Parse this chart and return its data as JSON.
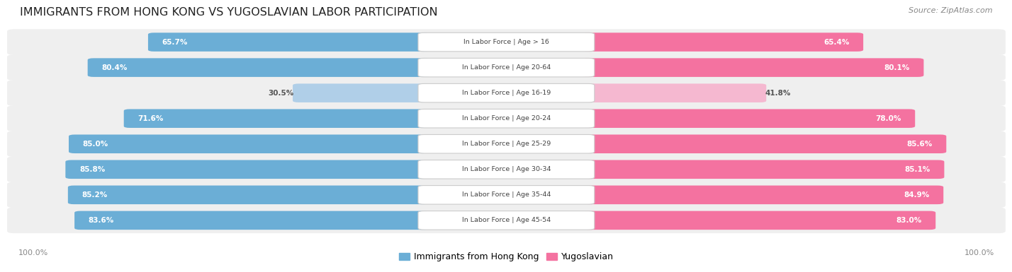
{
  "title": "IMMIGRANTS FROM HONG KONG VS YUGOSLAVIAN LABOR PARTICIPATION",
  "source": "Source: ZipAtlas.com",
  "categories": [
    "In Labor Force | Age > 16",
    "In Labor Force | Age 20-64",
    "In Labor Force | Age 16-19",
    "In Labor Force | Age 20-24",
    "In Labor Force | Age 25-29",
    "In Labor Force | Age 30-34",
    "In Labor Force | Age 35-44",
    "In Labor Force | Age 45-54"
  ],
  "hong_kong_values": [
    65.7,
    80.4,
    30.5,
    71.6,
    85.0,
    85.8,
    85.2,
    83.6
  ],
  "yugoslavian_values": [
    65.4,
    80.1,
    41.8,
    78.0,
    85.6,
    85.1,
    84.9,
    83.0
  ],
  "hong_kong_color": "#6baed6",
  "hong_kong_color_light": "#b0cfe8",
  "yugoslavian_color": "#f472a0",
  "yugoslavian_color_light": "#f5b8d0",
  "row_bg_color": "#efefef",
  "row_border_color": "#dddddd",
  "label_color_dark": "#555555",
  "center_label_color": "#444444",
  "bottom_label_color": "#888888",
  "source_color": "#888888",
  "title_color": "#222222",
  "legend_hk": "Immigrants from Hong Kong",
  "legend_yu": "Yugoslavian",
  "fig_width": 14.06,
  "fig_height": 3.95,
  "fig_dpi": 100
}
